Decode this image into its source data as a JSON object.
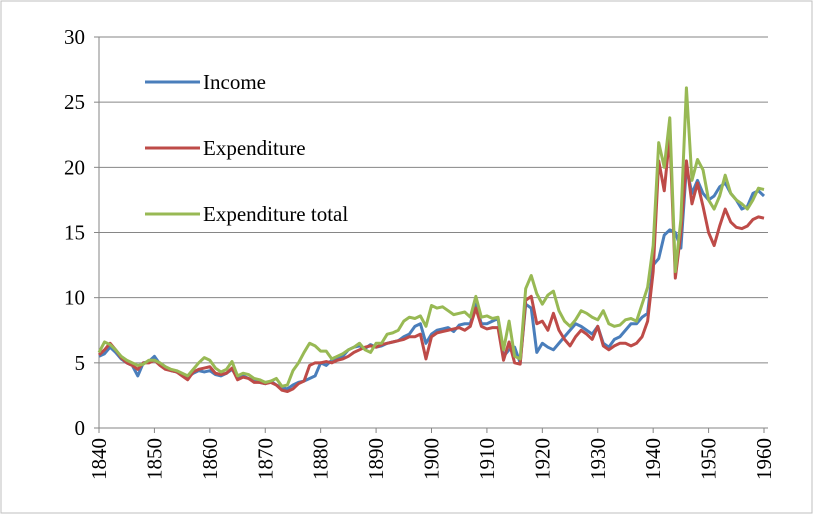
{
  "chart_data": {
    "type": "line",
    "x": [
      1840,
      1841,
      1842,
      1843,
      1844,
      1845,
      1846,
      1847,
      1848,
      1849,
      1850,
      1851,
      1852,
      1853,
      1854,
      1855,
      1856,
      1857,
      1858,
      1859,
      1860,
      1861,
      1862,
      1863,
      1864,
      1865,
      1866,
      1867,
      1868,
      1869,
      1870,
      1871,
      1872,
      1873,
      1874,
      1875,
      1876,
      1877,
      1878,
      1879,
      1880,
      1881,
      1882,
      1883,
      1884,
      1885,
      1886,
      1887,
      1888,
      1889,
      1890,
      1891,
      1892,
      1893,
      1894,
      1895,
      1896,
      1897,
      1898,
      1899,
      1900,
      1901,
      1902,
      1903,
      1904,
      1905,
      1906,
      1907,
      1908,
      1909,
      1910,
      1911,
      1912,
      1913,
      1914,
      1915,
      1916,
      1917,
      1918,
      1919,
      1920,
      1921,
      1922,
      1923,
      1924,
      1925,
      1926,
      1927,
      1928,
      1929,
      1930,
      1931,
      1932,
      1933,
      1934,
      1935,
      1936,
      1937,
      1938,
      1939,
      1940,
      1941,
      1942,
      1943,
      1944,
      1945,
      1946,
      1947,
      1948,
      1949,
      1950,
      1951,
      1952,
      1953,
      1954,
      1955,
      1956,
      1957,
      1958,
      1959,
      1960
    ],
    "series": [
      {
        "name": "Income",
        "color": "#4a7ebb",
        "values": [
          5.5,
          5.7,
          6.2,
          5.8,
          5.3,
          5.0,
          4.8,
          4.0,
          5.0,
          5.1,
          5.5,
          4.9,
          4.6,
          4.4,
          4.3,
          4.1,
          3.9,
          4.2,
          4.4,
          4.3,
          4.4,
          4.1,
          4.0,
          4.2,
          4.5,
          3.9,
          4.0,
          3.8,
          3.6,
          3.5,
          3.4,
          3.6,
          3.3,
          3.1,
          3.0,
          3.3,
          3.5,
          3.6,
          3.8,
          4.0,
          5.0,
          4.8,
          5.2,
          5.3,
          5.5,
          6.0,
          6.2,
          6.3,
          6.1,
          6.4,
          6.2,
          6.3,
          6.5,
          6.6,
          6.7,
          7.0,
          7.2,
          7.8,
          8.0,
          6.5,
          7.2,
          7.5,
          7.6,
          7.7,
          7.4,
          7.9,
          8.0,
          8.0,
          9.5,
          8.0,
          8.0,
          8.2,
          8.4,
          5.5,
          6.0,
          6.2,
          5.0,
          9.5,
          9.2,
          5.8,
          6.5,
          6.2,
          6.0,
          6.5,
          7.0,
          7.5,
          8.0,
          7.8,
          7.5,
          7.2,
          7.8,
          6.5,
          6.2,
          6.8,
          7.0,
          7.5,
          8.0,
          8.0,
          8.5,
          8.8,
          12.5,
          13.0,
          14.8,
          15.2,
          15.0,
          13.8,
          20.0,
          18.0,
          19.0,
          18.0,
          17.5,
          17.8,
          18.5,
          18.8,
          18.0,
          17.5,
          16.8,
          17.0,
          18.0,
          18.2,
          17.8
        ]
      },
      {
        "name": "Expenditure",
        "color": "#be4b48",
        "values": [
          5.6,
          6.0,
          6.5,
          6.0,
          5.4,
          5.0,
          4.8,
          4.5,
          5.0,
          5.0,
          5.2,
          4.8,
          4.5,
          4.4,
          4.3,
          4.0,
          3.7,
          4.3,
          4.5,
          4.6,
          4.7,
          4.2,
          4.1,
          4.2,
          4.6,
          3.7,
          3.9,
          3.8,
          3.5,
          3.5,
          3.4,
          3.5,
          3.3,
          2.9,
          2.8,
          3.0,
          3.4,
          3.6,
          4.8,
          5.0,
          5.0,
          5.1,
          5.0,
          5.2,
          5.3,
          5.5,
          5.8,
          6.0,
          6.2,
          6.3,
          6.2,
          6.4,
          6.5,
          6.6,
          6.7,
          6.8,
          7.0,
          7.0,
          7.2,
          5.3,
          7.0,
          7.3,
          7.4,
          7.5,
          7.6,
          7.7,
          7.5,
          7.8,
          9.2,
          7.8,
          7.6,
          7.7,
          7.7,
          5.2,
          6.6,
          5.0,
          4.9,
          9.8,
          10.1,
          8.0,
          8.2,
          7.5,
          8.8,
          7.5,
          6.8,
          6.3,
          7.0,
          7.5,
          7.2,
          6.8,
          7.8,
          6.3,
          6.0,
          6.3,
          6.5,
          6.5,
          6.3,
          6.5,
          7.0,
          8.2,
          12.0,
          20.5,
          18.2,
          22.5,
          11.5,
          15.0,
          20.5,
          17.2,
          18.8,
          17.0,
          15.0,
          14.0,
          15.5,
          16.8,
          15.8,
          15.4,
          15.3,
          15.5,
          16.0,
          16.2,
          16.1
        ]
      },
      {
        "name": "Expenditure total",
        "color": "#98b954",
        "values": [
          5.8,
          6.6,
          6.4,
          6.0,
          5.5,
          5.2,
          5.0,
          4.8,
          4.9,
          5.2,
          5.2,
          5.0,
          4.7,
          4.5,
          4.4,
          4.2,
          4.0,
          4.5,
          5.0,
          5.4,
          5.2,
          4.6,
          4.3,
          4.5,
          5.1,
          4.0,
          4.2,
          4.1,
          3.8,
          3.7,
          3.5,
          3.6,
          3.8,
          3.2,
          3.3,
          4.4,
          5.0,
          5.8,
          6.5,
          6.3,
          5.9,
          5.9,
          5.3,
          5.5,
          5.7,
          6.0,
          6.2,
          6.5,
          6.0,
          5.8,
          6.5,
          6.5,
          7.2,
          7.3,
          7.5,
          8.2,
          8.5,
          8.4,
          8.6,
          7.8,
          9.4,
          9.2,
          9.3,
          9.0,
          8.7,
          8.8,
          8.9,
          8.5,
          10.1,
          8.5,
          8.6,
          8.4,
          8.5,
          6.0,
          8.2,
          5.5,
          5.3,
          10.7,
          11.7,
          10.3,
          9.5,
          10.2,
          10.5,
          9.0,
          8.2,
          7.8,
          8.3,
          9.0,
          8.8,
          8.5,
          8.3,
          9.0,
          8.0,
          7.8,
          7.9,
          8.3,
          8.4,
          8.2,
          9.5,
          10.8,
          14.0,
          21.9,
          20.0,
          23.8,
          12.0,
          16.0,
          26.1,
          19.0,
          20.6,
          19.8,
          17.5,
          16.8,
          17.8,
          19.4,
          18.0,
          17.5,
          17.2,
          16.8,
          17.5,
          18.4,
          18.3
        ]
      }
    ],
    "xlim": [
      1840,
      1960
    ],
    "xticks": [
      1840,
      1850,
      1860,
      1870,
      1880,
      1890,
      1900,
      1910,
      1920,
      1930,
      1940,
      1950,
      1960
    ],
    "ylim": [
      0,
      30
    ],
    "yticks": [
      0,
      5,
      10,
      15,
      20,
      25,
      30
    ],
    "grid": true,
    "legend": "upper-left"
  }
}
